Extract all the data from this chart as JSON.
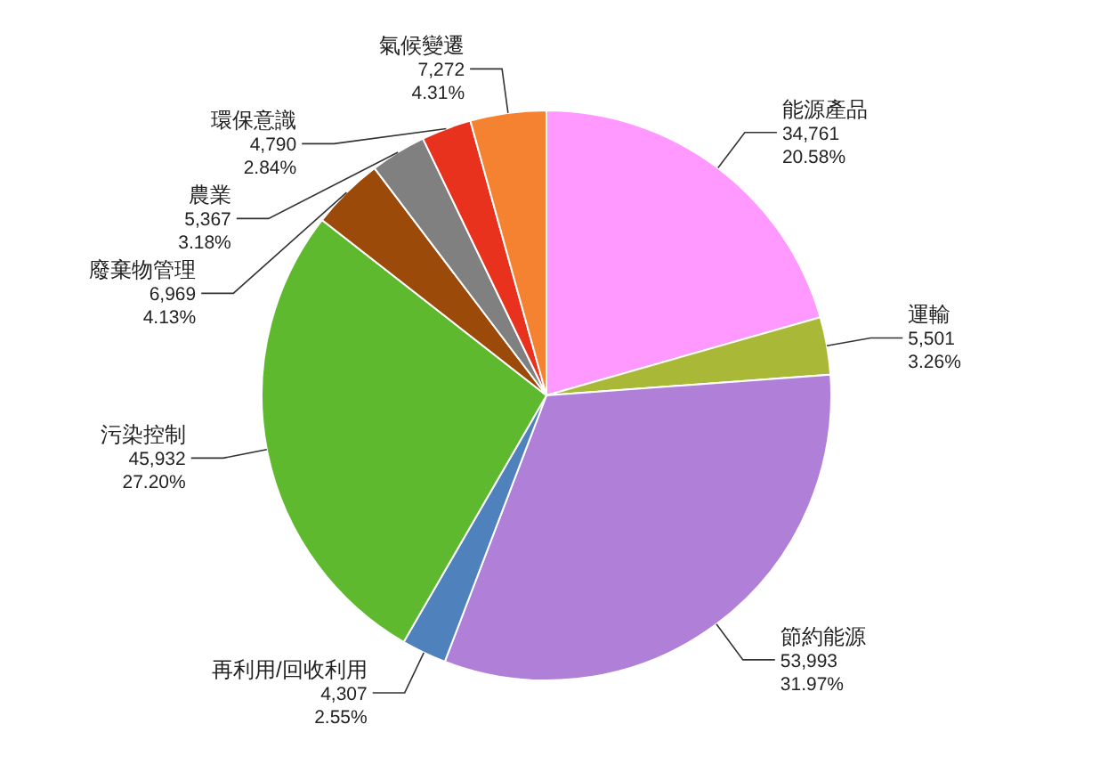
{
  "chart_data": {
    "type": "pie",
    "categories": [
      "能源產品",
      "運輸",
      "節約能源",
      "再利用/回收利用",
      "污染控制",
      "廢棄物管理",
      "農業",
      "環保意識",
      "氣候變遷"
    ],
    "values": [
      34761,
      5501,
      53993,
      4307,
      45932,
      6969,
      5367,
      4790,
      7272
    ],
    "colors": [
      "#ff99ff",
      "#a9b837",
      "#b07fd8",
      "#4f81bd",
      "#5fb92f",
      "#9b4a0a",
      "#808080",
      "#e8321e",
      "#f58230"
    ],
    "value_labels": [
      "34,761\n20.58%",
      "5,501\n3.26%",
      "53,993\n31.97%",
      "4,307\n2.55%",
      "45,932\n27.20%",
      "6,969\n4.13%",
      "5,367\n3.18%",
      "4,790\n2.84%",
      "7,272\n4.31%"
    ]
  }
}
